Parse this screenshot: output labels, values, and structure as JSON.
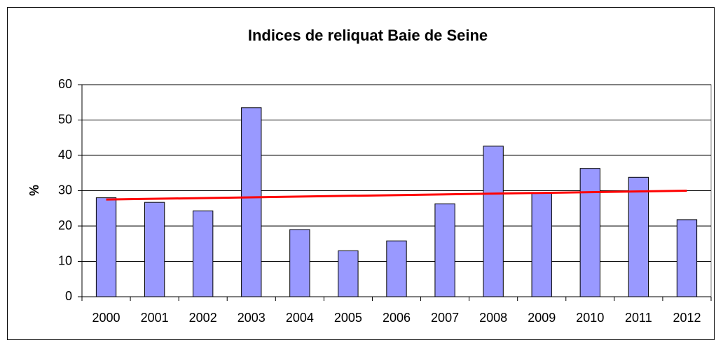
{
  "chart_data": {
    "type": "bar",
    "title": "Indices de reliquat Baie de Seine",
    "y_label": "%",
    "categories": [
      "2000",
      "2001",
      "2002",
      "2003",
      "2004",
      "2005",
      "2006",
      "2007",
      "2008",
      "2009",
      "2010",
      "2011",
      "2012"
    ],
    "values": [
      28,
      26.7,
      24.3,
      53.5,
      19,
      13,
      15.8,
      26.3,
      42.6,
      29.5,
      36.3,
      33.8,
      21.8
    ],
    "color": "#9999ff",
    "trend": {
      "color": "#ff0000",
      "values": [
        27.5,
        30
      ]
    },
    "ylim": [
      0,
      60
    ],
    "yticks": [
      0,
      10,
      20,
      30,
      40,
      50,
      60
    ],
    "grid": true
  }
}
